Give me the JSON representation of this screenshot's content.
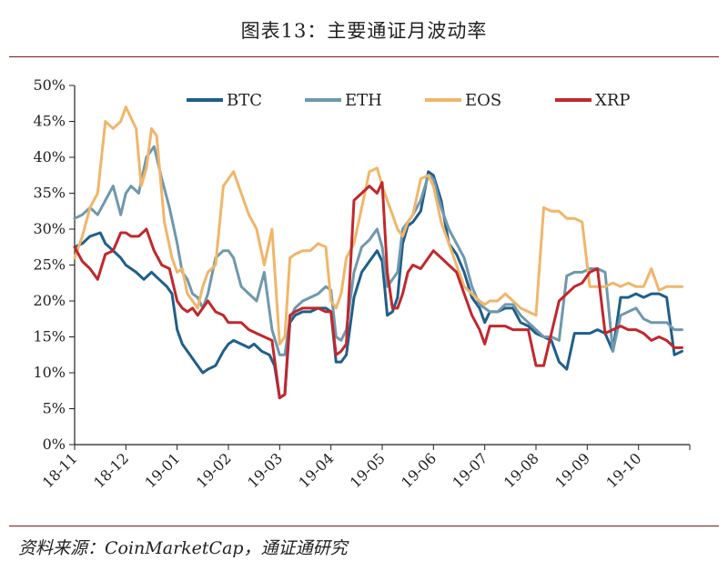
{
  "figure": {
    "title": "图表13：主要通证月波动率",
    "source": "资料来源：CoinMarketCap，通证通研究"
  },
  "chart_data": {
    "type": "line",
    "ylim": [
      0,
      50
    ],
    "yticks": [
      "0%",
      "5%",
      "10%",
      "15%",
      "20%",
      "25%",
      "30%",
      "35%",
      "40%",
      "45%",
      "50%"
    ],
    "ytick_values": [
      0,
      5,
      10,
      15,
      20,
      25,
      30,
      35,
      40,
      45,
      50
    ],
    "xlim": [
      0,
      12
    ],
    "xticks": [
      "18-11",
      "18-12",
      "19-01",
      "19-02",
      "19-03",
      "19-04",
      "19-05",
      "19-06",
      "19-07",
      "19-08",
      "19-09",
      "19-10"
    ],
    "legend_position": "top",
    "grid": false,
    "series": [
      {
        "name": "BTC",
        "color": "#1f5f8b",
        "x": [
          0,
          0.15,
          0.3,
          0.5,
          0.6,
          0.75,
          0.9,
          1.0,
          1.1,
          1.2,
          1.35,
          1.5,
          1.65,
          1.8,
          1.9,
          2.0,
          2.1,
          2.2,
          2.3,
          2.4,
          2.5,
          2.6,
          2.75,
          2.9,
          3.0,
          3.1,
          3.25,
          3.4,
          3.5,
          3.65,
          3.8,
          3.9,
          4.0,
          4.1,
          4.2,
          4.3,
          4.45,
          4.6,
          4.75,
          4.9,
          5.0,
          5.1,
          5.2,
          5.3,
          5.45,
          5.6,
          5.75,
          5.9,
          6.0,
          6.1,
          6.2,
          6.3,
          6.4,
          6.5,
          6.6,
          6.75,
          6.9,
          7.0,
          7.15,
          7.3,
          7.45,
          7.6,
          7.75,
          7.9,
          8.0,
          8.1,
          8.25,
          8.4,
          8.55,
          8.7,
          8.85,
          9.0,
          9.15,
          9.3,
          9.45,
          9.6,
          9.75,
          9.9,
          10.05,
          10.2,
          10.35,
          10.5,
          10.65,
          10.8,
          10.95,
          11.1,
          11.25,
          11.4,
          11.55,
          11.7,
          11.85
        ],
        "values": [
          27.5,
          28,
          29,
          29.5,
          28,
          27,
          26,
          25,
          24.5,
          24,
          23,
          24,
          23,
          22,
          21,
          16,
          14,
          13,
          12,
          11,
          10,
          10.5,
          11,
          13,
          14,
          14.5,
          14,
          13.5,
          14,
          13,
          12.5,
          11,
          6.5,
          7,
          17,
          18,
          18.5,
          18.5,
          19,
          19,
          18.5,
          11.5,
          11.5,
          12.5,
          20.5,
          24,
          25.5,
          27,
          25.5,
          18,
          18.5,
          20.5,
          28,
          30.5,
          31,
          32.5,
          38,
          37.5,
          34,
          28,
          26.5,
          24,
          20.5,
          19,
          17,
          18.5,
          18.5,
          19,
          19,
          17,
          16.5,
          15.5,
          15,
          14.5,
          11.5,
          10.5,
          15.5,
          15.5,
          15.5,
          16,
          15.5,
          13,
          20.5,
          20.5,
          21,
          20.5,
          21,
          21,
          20.5,
          12.5,
          13
        ]
      },
      {
        "name": "ETH",
        "color": "#6f98ad",
        "x": [
          0,
          0.15,
          0.3,
          0.45,
          0.6,
          0.75,
          0.9,
          1.0,
          1.1,
          1.25,
          1.4,
          1.55,
          1.7,
          1.85,
          2.0,
          2.1,
          2.2,
          2.3,
          2.4,
          2.5,
          2.6,
          2.75,
          2.9,
          3.0,
          3.1,
          3.25,
          3.4,
          3.55,
          3.7,
          3.85,
          4.0,
          4.1,
          4.2,
          4.3,
          4.45,
          4.6,
          4.75,
          4.9,
          5.0,
          5.1,
          5.2,
          5.3,
          5.45,
          5.6,
          5.75,
          5.9,
          6.0,
          6.1,
          6.2,
          6.3,
          6.4,
          6.5,
          6.6,
          6.75,
          6.9,
          7.0,
          7.15,
          7.3,
          7.45,
          7.6,
          7.75,
          7.9,
          8.0,
          8.1,
          8.25,
          8.4,
          8.55,
          8.7,
          8.85,
          9.0,
          9.15,
          9.3,
          9.45,
          9.6,
          9.75,
          9.9,
          10.05,
          10.2,
          10.35,
          10.5,
          10.65,
          10.8,
          10.95,
          11.1,
          11.25,
          11.4,
          11.55,
          11.7,
          11.85
        ],
        "values": [
          31.5,
          32,
          33,
          32,
          34,
          36,
          32,
          35,
          36,
          35,
          40,
          41.5,
          37,
          33,
          28,
          24,
          23,
          21,
          20.5,
          19,
          21,
          26,
          27,
          27,
          26,
          22,
          21,
          20,
          24,
          16,
          12.5,
          12.5,
          17.5,
          19,
          20,
          20.5,
          21,
          22,
          21.5,
          15,
          14.5,
          16,
          24,
          27.5,
          28.5,
          30,
          27.5,
          22,
          23,
          24,
          30,
          31,
          32,
          34,
          37.5,
          37,
          33,
          30,
          28,
          26,
          22,
          19.5,
          19,
          18.5,
          18.5,
          19.5,
          19.5,
          18,
          17,
          16,
          15,
          15,
          14.5,
          23.5,
          24,
          24,
          24.5,
          24.5,
          24,
          13,
          18,
          18.5,
          19,
          17.5,
          17,
          17,
          17,
          16,
          16
        ]
      },
      {
        "name": "EOS",
        "color": "#f0b66a",
        "x": [
          0,
          0.15,
          0.3,
          0.45,
          0.6,
          0.75,
          0.9,
          1.0,
          1.1,
          1.2,
          1.3,
          1.4,
          1.5,
          1.6,
          1.75,
          1.9,
          2.0,
          2.1,
          2.2,
          2.3,
          2.4,
          2.5,
          2.6,
          2.75,
          2.9,
          3.0,
          3.1,
          3.25,
          3.4,
          3.55,
          3.7,
          3.85,
          4.0,
          4.1,
          4.2,
          4.3,
          4.45,
          4.6,
          4.75,
          4.9,
          5.0,
          5.1,
          5.2,
          5.3,
          5.45,
          5.6,
          5.75,
          5.9,
          6.0,
          6.1,
          6.2,
          6.3,
          6.4,
          6.5,
          6.6,
          6.75,
          6.9,
          7.0,
          7.15,
          7.3,
          7.45,
          7.6,
          7.75,
          7.9,
          8.0,
          8.1,
          8.25,
          8.4,
          8.55,
          8.7,
          8.85,
          9.0,
          9.15,
          9.3,
          9.45,
          9.6,
          9.75,
          9.9,
          10.05,
          10.2,
          10.35,
          10.5,
          10.65,
          10.8,
          10.95,
          11.1,
          11.25,
          11.4,
          11.55,
          11.7,
          11.85
        ],
        "values": [
          26,
          29,
          33,
          35,
          45,
          44,
          45,
          47,
          45.5,
          44,
          36,
          38.5,
          44,
          43,
          31,
          26,
          24,
          24.5,
          21,
          20,
          19,
          22,
          24,
          25,
          36,
          37,
          38,
          35,
          32,
          30,
          25,
          30,
          14,
          15,
          26,
          26.5,
          27,
          27,
          28,
          27.5,
          20,
          19,
          21,
          26,
          28,
          33,
          38,
          38.5,
          36,
          34,
          32,
          30,
          29,
          31,
          32,
          37,
          37.5,
          36,
          31,
          28,
          25,
          22,
          21,
          20,
          19.5,
          20,
          20,
          21,
          20,
          19,
          18.5,
          18,
          33,
          32.5,
          32.5,
          31.5,
          31.5,
          31,
          22,
          22,
          22,
          22.5,
          22,
          22.5,
          22,
          22,
          24.5,
          21.5,
          22,
          22,
          22
        ]
      },
      {
        "name": "XRP",
        "color": "#c0282d",
        "x": [
          0,
          0.15,
          0.3,
          0.45,
          0.6,
          0.75,
          0.9,
          1.0,
          1.1,
          1.25,
          1.4,
          1.55,
          1.7,
          1.85,
          2.0,
          2.1,
          2.2,
          2.3,
          2.4,
          2.5,
          2.6,
          2.75,
          2.9,
          3.0,
          3.1,
          3.25,
          3.4,
          3.55,
          3.7,
          3.85,
          4.0,
          4.1,
          4.2,
          4.3,
          4.45,
          4.6,
          4.75,
          4.9,
          5.0,
          5.1,
          5.2,
          5.3,
          5.45,
          5.6,
          5.75,
          5.9,
          6.0,
          6.1,
          6.2,
          6.3,
          6.4,
          6.5,
          6.6,
          6.75,
          6.9,
          7.0,
          7.15,
          7.3,
          7.45,
          7.6,
          7.75,
          7.9,
          8.0,
          8.1,
          8.25,
          8.4,
          8.55,
          8.7,
          8.85,
          9.0,
          9.15,
          9.3,
          9.45,
          9.6,
          9.75,
          9.9,
          10.05,
          10.2,
          10.35,
          10.5,
          10.65,
          10.8,
          10.95,
          11.1,
          11.25,
          11.4,
          11.55,
          11.7,
          11.85
        ],
        "values": [
          27.5,
          25.5,
          24.5,
          23,
          26.5,
          27,
          29.5,
          29.5,
          29,
          29,
          30,
          27,
          25,
          24.5,
          20,
          19,
          18.5,
          19,
          18,
          19,
          20,
          18.5,
          18,
          17,
          17,
          17,
          16,
          15.5,
          15,
          14.5,
          6.5,
          7,
          18,
          18.5,
          19,
          19,
          19,
          18.5,
          18.5,
          12.5,
          13,
          14,
          34,
          35,
          36,
          35,
          36.5,
          24,
          19,
          19,
          21,
          24,
          25,
          24.5,
          26,
          27,
          26,
          25,
          24,
          21,
          18,
          16,
          14,
          16.5,
          16.5,
          16.5,
          16,
          16,
          16,
          11,
          11,
          15.5,
          20,
          21,
          22,
          22.5,
          24,
          24.5,
          15.5,
          16,
          16.5,
          16,
          16,
          15.5,
          14.5,
          15,
          14.5,
          13.5,
          13.5
        ]
      }
    ]
  }
}
